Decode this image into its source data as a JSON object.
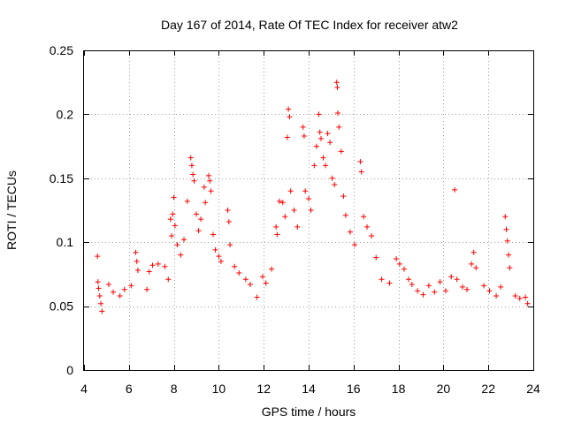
{
  "chart_data": {
    "type": "scatter",
    "title": "Day 167 of 2014, Rate Of TEC Index for receiver atw2",
    "xlabel": "GPS time / hours",
    "ylabel": "ROTI / TECUs",
    "xlim": [
      4,
      24
    ],
    "ylim": [
      0,
      0.25
    ],
    "x_ticks": [
      4,
      6,
      8,
      10,
      12,
      14,
      16,
      18,
      20,
      22,
      24
    ],
    "x_tick_labels": [
      "4",
      "6",
      "8",
      "10",
      "12",
      "14",
      "16",
      "18",
      "20",
      "22",
      "24"
    ],
    "y_ticks": [
      0,
      0.05,
      0.1,
      0.15,
      0.2,
      0.25
    ],
    "y_tick_labels": [
      "0",
      "0.05",
      "0.1",
      "0.15",
      "0.2",
      "0.25"
    ],
    "grid": true,
    "marker": "+",
    "series_color": "#ff0000",
    "series": [
      {
        "name": "ROTI",
        "points": [
          [
            4.6,
            0.089
          ],
          [
            4.62,
            0.069
          ],
          [
            4.65,
            0.064
          ],
          [
            4.7,
            0.058
          ],
          [
            4.75,
            0.052
          ],
          [
            4.8,
            0.046
          ],
          [
            5.1,
            0.067
          ],
          [
            5.3,
            0.061
          ],
          [
            5.6,
            0.058
          ],
          [
            5.8,
            0.063
          ],
          [
            6.1,
            0.066
          ],
          [
            6.3,
            0.092
          ],
          [
            6.35,
            0.085
          ],
          [
            6.4,
            0.078
          ],
          [
            6.8,
            0.063
          ],
          [
            6.9,
            0.077
          ],
          [
            7.05,
            0.082
          ],
          [
            7.3,
            0.083
          ],
          [
            7.6,
            0.081
          ],
          [
            7.75,
            0.071
          ],
          [
            7.85,
            0.118
          ],
          [
            7.9,
            0.105
          ],
          [
            7.95,
            0.122
          ],
          [
            8.0,
            0.135
          ],
          [
            8.05,
            0.113
          ],
          [
            8.15,
            0.098
          ],
          [
            8.3,
            0.09
          ],
          [
            8.45,
            0.102
          ],
          [
            8.6,
            0.132
          ],
          [
            8.75,
            0.166
          ],
          [
            8.8,
            0.16
          ],
          [
            8.85,
            0.153
          ],
          [
            8.9,
            0.148
          ],
          [
            9.0,
            0.122
          ],
          [
            9.1,
            0.109
          ],
          [
            9.2,
            0.118
          ],
          [
            9.35,
            0.143
          ],
          [
            9.4,
            0.131
          ],
          [
            9.55,
            0.152
          ],
          [
            9.6,
            0.148
          ],
          [
            9.65,
            0.14
          ],
          [
            9.75,
            0.106
          ],
          [
            9.85,
            0.094
          ],
          [
            10.0,
            0.089
          ],
          [
            10.1,
            0.085
          ],
          [
            10.4,
            0.125
          ],
          [
            10.45,
            0.116
          ],
          [
            10.5,
            0.098
          ],
          [
            10.7,
            0.081
          ],
          [
            10.9,
            0.076
          ],
          [
            11.2,
            0.071
          ],
          [
            11.4,
            0.067
          ],
          [
            11.7,
            0.057
          ],
          [
            11.95,
            0.073
          ],
          [
            12.1,
            0.068
          ],
          [
            12.35,
            0.079
          ],
          [
            12.55,
            0.112
          ],
          [
            12.6,
            0.106
          ],
          [
            12.7,
            0.132
          ],
          [
            12.85,
            0.131
          ],
          [
            12.95,
            0.12
          ],
          [
            13.05,
            0.182
          ],
          [
            13.1,
            0.204
          ],
          [
            13.15,
            0.198
          ],
          [
            13.2,
            0.14
          ],
          [
            13.35,
            0.125
          ],
          [
            13.5,
            0.112
          ],
          [
            13.75,
            0.19
          ],
          [
            13.8,
            0.183
          ],
          [
            13.85,
            0.14
          ],
          [
            14.0,
            0.134
          ],
          [
            14.1,
            0.125
          ],
          [
            14.25,
            0.16
          ],
          [
            14.35,
            0.175
          ],
          [
            14.45,
            0.2
          ],
          [
            14.5,
            0.186
          ],
          [
            14.55,
            0.181
          ],
          [
            14.65,
            0.166
          ],
          [
            14.75,
            0.16
          ],
          [
            14.85,
            0.185
          ],
          [
            14.95,
            0.178
          ],
          [
            15.05,
            0.15
          ],
          [
            15.15,
            0.145
          ],
          [
            15.25,
            0.225
          ],
          [
            15.28,
            0.221
          ],
          [
            15.3,
            0.201
          ],
          [
            15.35,
            0.19
          ],
          [
            15.45,
            0.171
          ],
          [
            15.55,
            0.136
          ],
          [
            15.65,
            0.121
          ],
          [
            15.85,
            0.108
          ],
          [
            16.05,
            0.098
          ],
          [
            16.3,
            0.163
          ],
          [
            16.35,
            0.155
          ],
          [
            16.45,
            0.12
          ],
          [
            16.6,
            0.112
          ],
          [
            16.8,
            0.105
          ],
          [
            17.0,
            0.088
          ],
          [
            17.25,
            0.071
          ],
          [
            17.6,
            0.068
          ],
          [
            17.9,
            0.087
          ],
          [
            18.05,
            0.083
          ],
          [
            18.25,
            0.079
          ],
          [
            18.45,
            0.071
          ],
          [
            18.6,
            0.067
          ],
          [
            18.85,
            0.062
          ],
          [
            19.1,
            0.059
          ],
          [
            19.35,
            0.066
          ],
          [
            19.6,
            0.061
          ],
          [
            19.85,
            0.069
          ],
          [
            20.1,
            0.062
          ],
          [
            20.35,
            0.073
          ],
          [
            20.5,
            0.141
          ],
          [
            20.6,
            0.071
          ],
          [
            20.85,
            0.065
          ],
          [
            21.05,
            0.063
          ],
          [
            21.25,
            0.083
          ],
          [
            21.35,
            0.092
          ],
          [
            21.45,
            0.08
          ],
          [
            21.8,
            0.066
          ],
          [
            22.05,
            0.062
          ],
          [
            22.35,
            0.058
          ],
          [
            22.55,
            0.065
          ],
          [
            22.75,
            0.12
          ],
          [
            22.8,
            0.11
          ],
          [
            22.85,
            0.101
          ],
          [
            22.9,
            0.09
          ],
          [
            22.95,
            0.08
          ],
          [
            23.2,
            0.058
          ],
          [
            23.4,
            0.056
          ],
          [
            23.65,
            0.057
          ],
          [
            23.75,
            0.052
          ]
        ]
      }
    ]
  }
}
